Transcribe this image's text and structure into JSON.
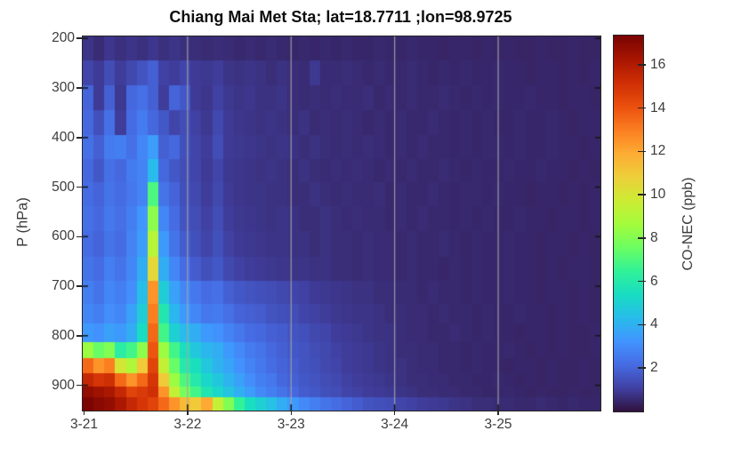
{
  "figure": {
    "background": "#ffffff"
  },
  "colors": {
    "axis_color": "#262626",
    "tick_label_color": "#3c3c3c",
    "title_color": "#0d0d0d",
    "grid_line_color": "#a6a6a6",
    "colormap_low": "#30123b",
    "colormap_high": "#7a0403"
  },
  "chart_data": {
    "type": "heatmap",
    "title": "Chiang Mai Met Sta; lat=18.7711 ;lon=98.9725",
    "xlabel": "",
    "ylabel": "P (hPa)",
    "colorbar_label": "CO-NEC (ppb)",
    "colormap": "turbo",
    "clim": [
      0,
      17.35
    ],
    "colorbar_ticks": [
      2,
      4,
      6,
      8,
      10,
      12,
      14,
      16
    ],
    "x_tick_labels": [
      "3-21",
      "3-22",
      "3-23",
      "3-24",
      "3-25"
    ],
    "x_tick_hours": [
      0,
      24,
      48,
      72,
      96
    ],
    "grid_hours": [
      24,
      48,
      72,
      96
    ],
    "grid_on": true,
    "legend": "colorbar-right",
    "x_range_hours": [
      -0.3,
      119.7
    ],
    "time_start_hours": -0.3,
    "time_step_hours": 2.5,
    "y_ticks": [
      200,
      300,
      400,
      500,
      600,
      700,
      800,
      900
    ],
    "ylim": [
      196,
      951
    ],
    "p_edges": [
      196,
      245,
      295,
      345,
      395,
      443,
      490,
      538,
      588,
      640,
      690,
      736,
      776,
      813,
      846,
      876,
      902,
      924,
      951
    ],
    "values": [
      [
        0.8,
        0.6,
        0.85,
        0.7,
        0.8,
        0.7,
        0.85,
        0.7,
        0.8,
        0.7,
        0.65,
        0.6,
        0.65,
        0.6,
        0.55,
        0.6,
        0.55,
        0.6,
        0.55,
        0.5,
        0.55,
        0.5,
        0.55,
        0.5,
        0.55,
        0.5,
        0.5,
        0.55,
        0.5,
        0.5,
        0.55,
        0.5,
        0.5,
        0.45,
        0.5,
        0.5,
        0.45,
        0.5,
        0.45,
        0.5,
        0.45,
        0.45,
        0.5,
        0.45,
        0.45,
        0.5,
        0.45,
        0.45
      ],
      [
        1.2,
        0.95,
        1.4,
        1.0,
        1.3,
        1.6,
        1.9,
        1.1,
        1.0,
        1.2,
        0.95,
        0.9,
        1.0,
        0.8,
        0.75,
        0.8,
        0.75,
        0.65,
        0.75,
        0.65,
        0.6,
        0.9,
        0.6,
        0.6,
        0.65,
        0.6,
        0.55,
        0.6,
        0.55,
        0.55,
        0.6,
        0.55,
        0.5,
        0.55,
        0.5,
        0.55,
        0.5,
        0.5,
        0.55,
        0.5,
        0.5,
        0.45,
        0.5,
        0.5,
        0.45,
        0.5,
        0.45,
        0.5
      ],
      [
        2.0,
        0.95,
        1.9,
        0.9,
        2.1,
        2.3,
        1.9,
        1.0,
        2.0,
        1.7,
        0.95,
        0.85,
        1.1,
        0.9,
        0.8,
        0.85,
        0.75,
        0.75,
        0.8,
        0.65,
        0.6,
        0.65,
        0.6,
        0.65,
        0.6,
        0.6,
        0.65,
        0.55,
        0.6,
        0.55,
        0.6,
        0.55,
        0.55,
        0.6,
        0.55,
        0.5,
        0.55,
        0.5,
        0.55,
        0.5,
        0.5,
        0.55,
        0.5,
        0.5,
        0.45,
        0.5,
        0.5,
        0.45
      ],
      [
        2.1,
        1.5,
        2.3,
        1.0,
        2.2,
        2.6,
        2.1,
        1.7,
        1.2,
        1.4,
        1.1,
        0.9,
        1.3,
        0.95,
        0.85,
        0.8,
        0.75,
        0.8,
        0.75,
        0.65,
        0.75,
        0.6,
        0.65,
        0.6,
        0.65,
        0.6,
        0.55,
        0.6,
        0.55,
        0.6,
        0.55,
        0.55,
        0.6,
        0.55,
        0.5,
        0.55,
        0.5,
        0.55,
        0.5,
        0.5,
        0.55,
        0.5,
        0.5,
        0.55,
        0.5,
        0.45,
        0.5,
        0.5
      ],
      [
        2.3,
        1.9,
        2.6,
        2.7,
        2.3,
        2.9,
        3.5,
        1.9,
        2.1,
        1.5,
        1.2,
        1.0,
        1.4,
        0.95,
        0.9,
        0.85,
        0.8,
        0.75,
        0.8,
        0.75,
        0.65,
        0.75,
        0.65,
        0.6,
        0.65,
        0.6,
        0.65,
        0.6,
        0.55,
        0.6,
        0.55,
        0.6,
        0.55,
        0.55,
        0.5,
        0.55,
        0.5,
        0.55,
        0.55,
        0.5,
        0.55,
        0.5,
        0.5,
        0.55,
        0.5,
        0.5,
        0.45,
        0.5
      ],
      [
        2.1,
        1.7,
        2.3,
        2.1,
        2.6,
        2.8,
        4.3,
        2.1,
        1.7,
        1.4,
        1.2,
        0.95,
        1.2,
        0.9,
        0.85,
        0.8,
        0.75,
        0.8,
        0.75,
        0.65,
        0.75,
        0.65,
        0.6,
        0.65,
        0.6,
        0.65,
        0.6,
        0.55,
        0.6,
        0.55,
        0.6,
        0.55,
        0.55,
        0.6,
        0.55,
        0.5,
        0.55,
        0.5,
        0.5,
        0.55,
        0.5,
        0.5,
        0.55,
        0.5,
        0.5,
        0.45,
        0.5,
        0.45
      ],
      [
        2.2,
        2.0,
        2.4,
        2.2,
        2.5,
        2.8,
        7.0,
        2.4,
        2.0,
        1.5,
        1.3,
        1.0,
        1.3,
        0.95,
        0.85,
        0.8,
        0.8,
        0.75,
        0.75,
        0.65,
        0.65,
        0.75,
        0.65,
        0.6,
        0.65,
        0.6,
        0.6,
        0.65,
        0.55,
        0.6,
        0.55,
        0.55,
        0.6,
        0.55,
        0.5,
        0.55,
        0.55,
        0.5,
        0.55,
        0.5,
        0.5,
        0.45,
        0.5,
        0.5,
        0.45,
        0.5,
        0.45,
        0.5
      ],
      [
        2.3,
        2.1,
        2.5,
        2.3,
        2.7,
        3.3,
        8.2,
        2.9,
        2.2,
        1.6,
        1.4,
        1.1,
        1.4,
        1.0,
        0.9,
        0.85,
        0.8,
        0.75,
        0.8,
        0.75,
        0.65,
        0.65,
        0.75,
        0.65,
        0.6,
        0.65,
        0.6,
        0.6,
        0.55,
        0.6,
        0.55,
        0.6,
        0.55,
        0.55,
        0.5,
        0.55,
        0.5,
        0.55,
        0.5,
        0.5,
        0.55,
        0.5,
        0.5,
        0.45,
        0.5,
        0.5,
        0.45,
        0.5
      ],
      [
        2.2,
        2.0,
        2.4,
        2.2,
        2.8,
        3.5,
        9.2,
        3.4,
        2.4,
        1.8,
        1.5,
        1.2,
        1.5,
        1.1,
        0.95,
        0.9,
        0.85,
        0.8,
        0.8,
        0.75,
        0.75,
        0.65,
        0.75,
        0.65,
        0.65,
        0.6,
        0.65,
        0.6,
        0.6,
        0.55,
        0.6,
        0.55,
        0.55,
        0.6,
        0.55,
        0.5,
        0.55,
        0.5,
        0.5,
        0.55,
        0.5,
        0.5,
        0.45,
        0.5,
        0.5,
        0.45,
        0.5,
        0.45
      ],
      [
        2.4,
        2.2,
        2.7,
        2.4,
        2.9,
        3.9,
        10.5,
        3.9,
        2.9,
        2.2,
        1.8,
        1.5,
        1.7,
        1.3,
        1.1,
        1.0,
        0.95,
        0.9,
        0.85,
        0.8,
        0.8,
        0.75,
        0.75,
        0.65,
        0.65,
        0.6,
        0.65,
        0.6,
        0.6,
        0.55,
        0.6,
        0.55,
        0.55,
        0.5,
        0.55,
        0.5,
        0.55,
        0.5,
        0.5,
        0.55,
        0.5,
        0.5,
        0.45,
        0.5,
        0.45,
        0.5,
        0.5,
        0.45
      ],
      [
        2.7,
        2.4,
        2.9,
        2.7,
        3.1,
        4.4,
        12.5,
        4.9,
        3.6,
        2.9,
        2.5,
        2.2,
        2.3,
        1.9,
        1.7,
        1.6,
        1.5,
        1.4,
        1.3,
        1.2,
        1.1,
        0.95,
        0.9,
        0.85,
        0.8,
        0.75,
        0.75,
        0.65,
        0.65,
        0.6,
        0.6,
        0.55,
        0.6,
        0.55,
        0.55,
        0.5,
        0.55,
        0.5,
        0.5,
        0.55,
        0.5,
        0.5,
        0.45,
        0.5,
        0.5,
        0.45,
        0.5,
        0.45
      ],
      [
        2.9,
        2.7,
        3.1,
        2.9,
        3.6,
        4.9,
        13.0,
        5.9,
        4.2,
        3.4,
        2.9,
        2.5,
        2.6,
        2.3,
        2.0,
        1.9,
        1.8,
        1.6,
        1.5,
        1.4,
        1.2,
        1.1,
        1.0,
        0.9,
        0.85,
        0.8,
        0.8,
        0.75,
        0.65,
        0.65,
        0.6,
        0.6,
        0.55,
        0.6,
        0.55,
        0.55,
        0.5,
        0.55,
        0.5,
        0.5,
        0.55,
        0.5,
        0.5,
        0.45,
        0.5,
        0.45,
        0.5,
        0.45
      ],
      [
        3.4,
        3.2,
        3.6,
        3.4,
        3.9,
        5.4,
        13.5,
        6.8,
        5.0,
        4.3,
        3.9,
        3.4,
        3.2,
        2.8,
        2.5,
        2.2,
        2.1,
        1.9,
        1.8,
        1.6,
        1.5,
        1.3,
        1.2,
        1.0,
        0.95,
        0.9,
        0.8,
        0.75,
        0.75,
        0.65,
        0.6,
        0.6,
        0.55,
        0.55,
        0.6,
        0.55,
        0.5,
        0.55,
        0.5,
        0.5,
        0.45,
        0.5,
        0.5,
        0.45,
        0.5,
        0.45,
        0.45,
        0.5
      ],
      [
        8.5,
        7.5,
        8.0,
        6.2,
        6.8,
        8.2,
        14.0,
        8.5,
        6.8,
        5.5,
        4.7,
        4.2,
        3.9,
        3.4,
        3.0,
        2.6,
        2.4,
        2.1,
        1.9,
        1.7,
        1.6,
        1.4,
        1.3,
        1.1,
        1.0,
        0.95,
        0.9,
        0.8,
        0.75,
        0.65,
        0.65,
        0.6,
        0.6,
        0.55,
        0.55,
        0.5,
        0.55,
        0.5,
        0.5,
        0.55,
        0.5,
        0.45,
        0.5,
        0.45,
        0.5,
        0.45,
        0.45,
        0.5
      ],
      [
        13.5,
        12.5,
        13.0,
        10.0,
        9.0,
        11.0,
        14.5,
        9.5,
        7.5,
        6.0,
        5.5,
        4.7,
        4.1,
        3.7,
        3.2,
        2.8,
        2.5,
        2.2,
        2.0,
        1.8,
        1.6,
        1.5,
        1.3,
        1.2,
        1.0,
        0.95,
        0.9,
        0.8,
        0.75,
        0.75,
        0.65,
        0.6,
        0.6,
        0.55,
        0.55,
        0.5,
        0.55,
        0.5,
        0.5,
        0.45,
        0.5,
        0.5,
        0.45,
        0.5,
        0.45,
        0.45,
        0.5,
        0.45
      ],
      [
        15.5,
        15.0,
        15.2,
        13.5,
        12.5,
        13.5,
        15.0,
        11.0,
        8.5,
        7.0,
        6.0,
        5.2,
        4.7,
        4.1,
        3.6,
        3.1,
        2.7,
        2.5,
        2.1,
        1.9,
        1.7,
        1.6,
        1.4,
        1.3,
        1.1,
        1.0,
        0.95,
        0.9,
        0.8,
        0.75,
        0.65,
        0.65,
        0.6,
        0.6,
        0.55,
        0.55,
        0.5,
        0.5,
        0.55,
        0.5,
        0.45,
        0.5,
        0.45,
        0.5,
        0.45,
        0.45,
        0.5,
        0.45
      ],
      [
        16.8,
        16.5,
        16.2,
        15.5,
        14.5,
        14.8,
        15.2,
        12.5,
        9.5,
        7.8,
        6.8,
        5.8,
        5.2,
        4.6,
        4.0,
        3.5,
        3.0,
        2.7,
        2.4,
        2.1,
        1.8,
        1.7,
        1.5,
        1.4,
        1.2,
        1.1,
        1.0,
        0.95,
        0.9,
        0.8,
        0.75,
        0.65,
        0.65,
        0.6,
        0.6,
        0.55,
        0.55,
        0.5,
        0.5,
        0.55,
        0.5,
        0.45,
        0.5,
        0.45,
        0.45,
        0.5,
        0.45,
        0.45
      ],
      [
        17.3,
        17.0,
        16.8,
        16.2,
        15.5,
        15.0,
        14.5,
        13.5,
        12.5,
        11.5,
        11.0,
        12.0,
        9.5,
        8.0,
        6.5,
        5.5,
        5.0,
        4.5,
        3.9,
        3.4,
        3.0,
        2.7,
        2.4,
        2.2,
        2.0,
        1.8,
        1.6,
        1.5,
        1.4,
        1.2,
        1.1,
        1.0,
        0.95,
        0.9,
        0.8,
        0.75,
        0.65,
        0.65,
        0.6,
        0.6,
        0.55,
        0.55,
        0.6,
        0.55,
        0.5,
        0.55,
        0.5,
        0.5
      ]
    ]
  }
}
